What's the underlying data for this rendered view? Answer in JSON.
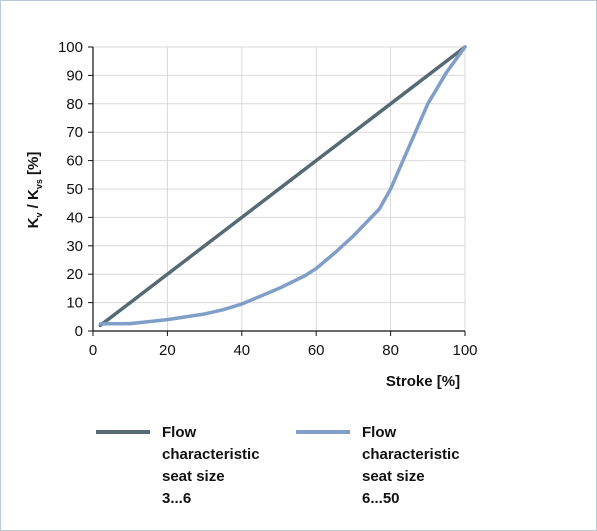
{
  "chart_data": {
    "type": "line",
    "xlabel": "Stroke [%]",
    "ylabel": {
      "k1": "K",
      "sub1": "v",
      "slash": " / ",
      "k2": "K",
      "sub2": "vs",
      "unit": "  [%]"
    },
    "xlim": [
      0,
      100
    ],
    "ylim": [
      0,
      100
    ],
    "xticks": [
      0,
      20,
      40,
      60,
      80,
      100
    ],
    "yticks": [
      0,
      10,
      20,
      30,
      40,
      50,
      60,
      70,
      80,
      90,
      100
    ],
    "grid": true,
    "legend_position": "bottom",
    "series": [
      {
        "name_lines": [
          "Flow",
          "characteristic",
          "seat size",
          "3...6"
        ],
        "color": "#566a74",
        "x": [
          2,
          100
        ],
        "y": [
          2,
          100
        ]
      },
      {
        "name_lines": [
          "Flow",
          "characteristic",
          "seat size",
          "6...50"
        ],
        "color": "#7f9fc9",
        "x": [
          2,
          10,
          20,
          30,
          35,
          40,
          50,
          57,
          60,
          65,
          70,
          77,
          80,
          83,
          85,
          90,
          95,
          100
        ],
        "y": [
          2.5,
          2.6,
          4,
          6,
          7.5,
          9.5,
          15,
          19.5,
          22,
          27.5,
          33.5,
          43,
          50,
          59,
          65,
          80,
          91,
          100
        ]
      }
    ]
  }
}
